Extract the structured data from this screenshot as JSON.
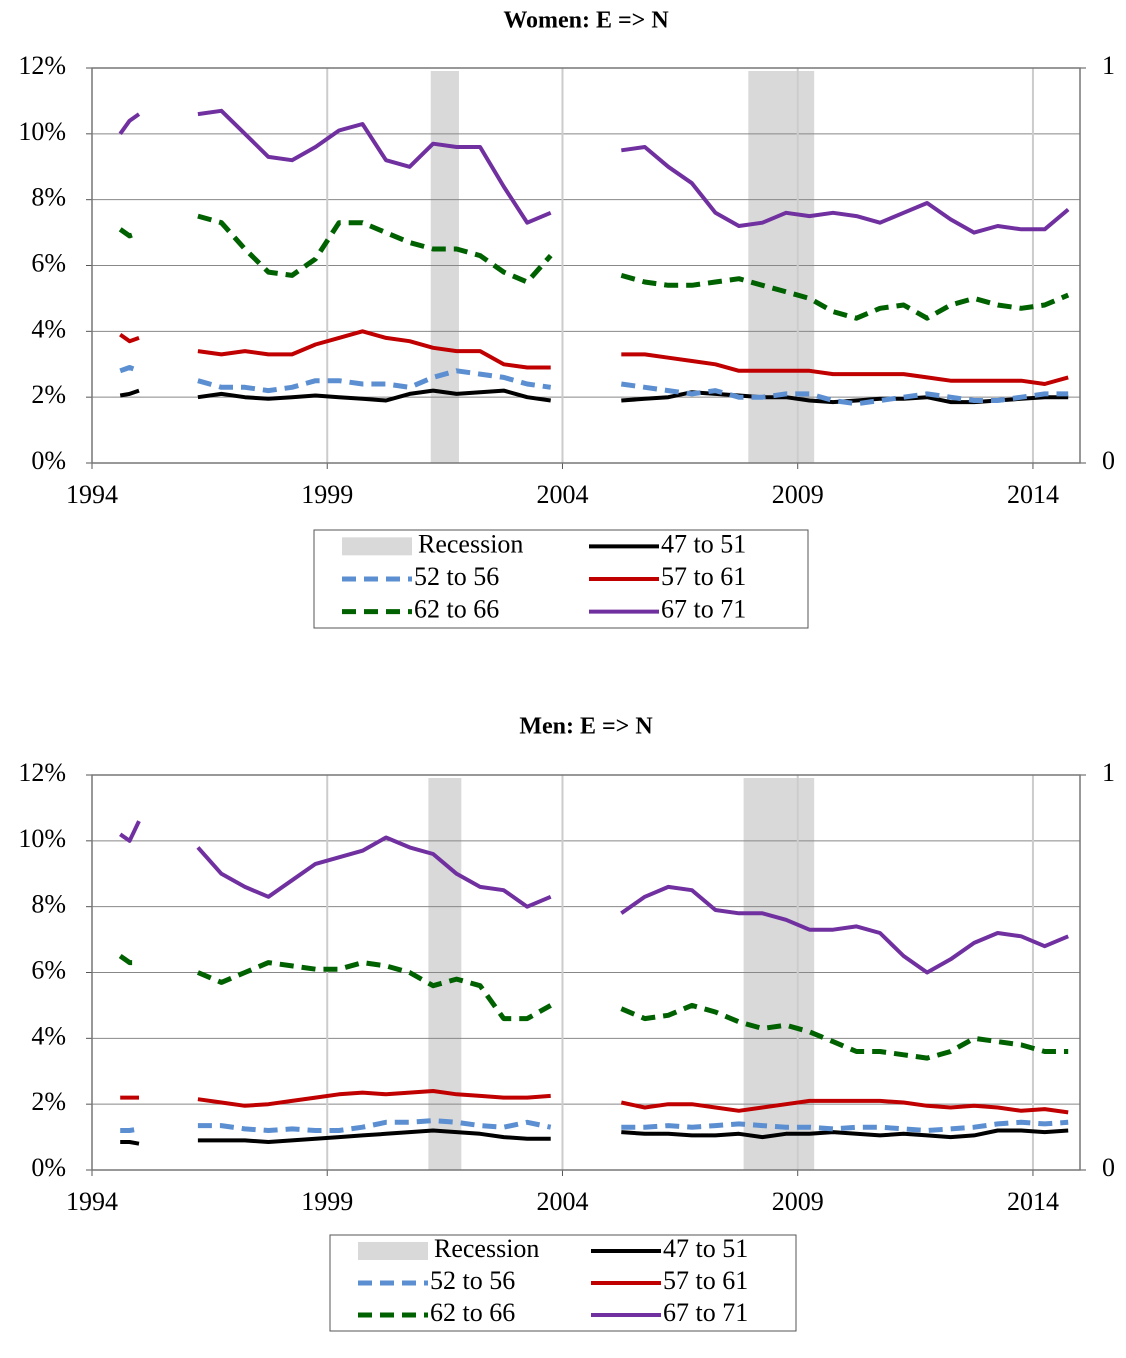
{
  "chart_data": [
    {
      "type": "line",
      "title": "Women:  E => N",
      "x": [
        1994.6,
        1994.8,
        1995.0,
        1995.6,
        1996.25,
        1996.75,
        1997.25,
        1997.75,
        1998.25,
        1998.75,
        1999.25,
        1999.75,
        2000.25,
        2000.75,
        2001.25,
        2001.75,
        2002.25,
        2002.75,
        2003.25,
        2003.75,
        2004.5,
        2005.25,
        2005.75,
        2006.25,
        2006.75,
        2007.25,
        2007.75,
        2008.25,
        2008.75,
        2009.25,
        2009.75,
        2010.25,
        2010.75,
        2011.25,
        2011.75,
        2012.25,
        2012.75,
        2013.25,
        2013.75,
        2014.25,
        2014.75
      ],
      "xlim": [
        1994,
        2015
      ],
      "xticks": [
        1994,
        1999,
        2004,
        2009,
        2014
      ],
      "ylim": [
        0,
        12
      ],
      "yticks": [
        {
          "value": 0,
          "label": "0%"
        },
        {
          "value": 2,
          "label": "2%"
        },
        {
          "value": 4,
          "label": "4%"
        },
        {
          "value": 6,
          "label": "6%"
        },
        {
          "value": 8,
          "label": "8%"
        },
        {
          "value": 10,
          "label": "10%"
        },
        {
          "value": 12,
          "label": "12%"
        }
      ],
      "y2lim": [
        0,
        1
      ],
      "y2ticks": [
        0,
        1
      ],
      "grid": true,
      "recessions": {
        "name": "Recession",
        "color": "#d9d9d9",
        "ranges": [
          [
            2001.2,
            2001.8
          ],
          [
            2007.95,
            2009.35
          ]
        ]
      },
      "series": [
        {
          "name": "47 to 51",
          "color": "#000000",
          "style": "solid",
          "values": [
            2.05,
            2.1,
            2.2,
            null,
            2.0,
            2.1,
            2.0,
            1.95,
            2.0,
            2.05,
            2.0,
            1.95,
            1.9,
            2.1,
            2.2,
            2.1,
            2.15,
            2.2,
            2.0,
            1.9,
            null,
            1.9,
            1.95,
            2.0,
            2.15,
            2.1,
            2.05,
            2.0,
            2.0,
            1.9,
            1.85,
            1.9,
            1.95,
            1.95,
            2.0,
            1.85,
            1.85,
            1.9,
            1.95,
            2.0,
            2.0
          ]
        },
        {
          "name": "52 to 56",
          "color": "#5b8fd1",
          "style": "dashed",
          "values": [
            2.8,
            2.9,
            2.8,
            null,
            2.5,
            2.3,
            2.3,
            2.2,
            2.3,
            2.5,
            2.5,
            2.4,
            2.4,
            2.3,
            2.6,
            2.8,
            2.7,
            2.6,
            2.4,
            2.3,
            null,
            2.4,
            2.3,
            2.2,
            2.1,
            2.2,
            2.0,
            2.0,
            2.1,
            2.1,
            1.9,
            1.8,
            1.9,
            2.0,
            2.1,
            2.0,
            1.9,
            1.9,
            2.0,
            2.1,
            2.1
          ]
        },
        {
          "name": "57 to 61",
          "color": "#c00000",
          "style": "solid",
          "values": [
            3.9,
            3.7,
            3.8,
            null,
            3.4,
            3.3,
            3.4,
            3.3,
            3.3,
            3.6,
            3.8,
            4.0,
            3.8,
            3.7,
            3.5,
            3.4,
            3.4,
            3.0,
            2.9,
            2.9,
            null,
            3.3,
            3.3,
            3.2,
            3.1,
            3.0,
            2.8,
            2.8,
            2.8,
            2.8,
            2.7,
            2.7,
            2.7,
            2.7,
            2.6,
            2.5,
            2.5,
            2.5,
            2.5,
            2.4,
            2.6
          ]
        },
        {
          "name": "62 to 66",
          "color": "#006100",
          "style": "dashed",
          "values": [
            7.1,
            6.9,
            7.0,
            null,
            7.5,
            7.3,
            6.5,
            5.8,
            5.7,
            6.2,
            7.3,
            7.3,
            7.0,
            6.7,
            6.5,
            6.5,
            6.3,
            5.8,
            5.5,
            6.3,
            null,
            5.7,
            5.5,
            5.4,
            5.4,
            5.5,
            5.6,
            5.4,
            5.2,
            5.0,
            4.6,
            4.4,
            4.7,
            4.8,
            4.4,
            4.8,
            5.0,
            4.8,
            4.7,
            4.8,
            5.1
          ]
        },
        {
          "name": "67 to 71",
          "color": "#7030a0",
          "style": "solid",
          "values": [
            10.0,
            10.4,
            10.6,
            null,
            10.6,
            10.7,
            10.0,
            9.3,
            9.2,
            9.6,
            10.1,
            10.3,
            9.2,
            9.0,
            9.7,
            9.6,
            9.6,
            8.4,
            7.3,
            7.6,
            null,
            9.5,
            9.6,
            9.0,
            8.5,
            7.6,
            7.2,
            7.3,
            7.6,
            7.5,
            7.6,
            7.5,
            7.3,
            7.6,
            7.9,
            7.4,
            7.0,
            7.2,
            7.1,
            7.1,
            7.7
          ]
        }
      ]
    },
    {
      "type": "line",
      "title": "Men:  E => N",
      "x": [
        1994.6,
        1994.8,
        1995.0,
        1995.6,
        1996.25,
        1996.75,
        1997.25,
        1997.75,
        1998.25,
        1998.75,
        1999.25,
        1999.75,
        2000.25,
        2000.75,
        2001.25,
        2001.75,
        2002.25,
        2002.75,
        2003.25,
        2003.75,
        2004.5,
        2005.25,
        2005.75,
        2006.25,
        2006.75,
        2007.25,
        2007.75,
        2008.25,
        2008.75,
        2009.25,
        2009.75,
        2010.25,
        2010.75,
        2011.25,
        2011.75,
        2012.25,
        2012.75,
        2013.25,
        2013.75,
        2014.25,
        2014.75
      ],
      "xlim": [
        1994,
        2015
      ],
      "xticks": [
        1994,
        1999,
        2004,
        2009,
        2014
      ],
      "ylim": [
        0,
        12
      ],
      "yticks": [
        {
          "value": 0,
          "label": "0%"
        },
        {
          "value": 2,
          "label": "2%"
        },
        {
          "value": 4,
          "label": "4%"
        },
        {
          "value": 6,
          "label": "6%"
        },
        {
          "value": 8,
          "label": "8%"
        },
        {
          "value": 10,
          "label": "10%"
        },
        {
          "value": 12,
          "label": "12%"
        }
      ],
      "y2lim": [
        0,
        1
      ],
      "y2ticks": [
        0,
        1
      ],
      "grid": true,
      "recessions": {
        "name": "Recession",
        "color": "#d9d9d9",
        "ranges": [
          [
            2001.15,
            2001.85
          ],
          [
            2007.85,
            2009.35
          ]
        ]
      },
      "series": [
        {
          "name": "47 to 51",
          "color": "#000000",
          "style": "solid",
          "values": [
            0.85,
            0.85,
            0.8,
            null,
            0.9,
            0.9,
            0.9,
            0.85,
            0.9,
            0.95,
            1.0,
            1.05,
            1.1,
            1.15,
            1.2,
            1.15,
            1.1,
            1.0,
            0.95,
            0.95,
            null,
            1.15,
            1.1,
            1.1,
            1.05,
            1.05,
            1.1,
            1.0,
            1.1,
            1.1,
            1.15,
            1.1,
            1.05,
            1.1,
            1.05,
            1.0,
            1.05,
            1.2,
            1.2,
            1.15,
            1.2
          ]
        },
        {
          "name": "52 to 56",
          "color": "#5b8fd1",
          "style": "dashed",
          "values": [
            1.2,
            1.2,
            1.25,
            null,
            1.35,
            1.35,
            1.25,
            1.2,
            1.25,
            1.2,
            1.2,
            1.3,
            1.45,
            1.45,
            1.5,
            1.45,
            1.35,
            1.3,
            1.45,
            1.3,
            null,
            1.3,
            1.3,
            1.35,
            1.3,
            1.35,
            1.4,
            1.35,
            1.3,
            1.3,
            1.25,
            1.3,
            1.3,
            1.25,
            1.2,
            1.25,
            1.3,
            1.4,
            1.45,
            1.4,
            1.45
          ]
        },
        {
          "name": "57 to 61",
          "color": "#c00000",
          "style": "solid",
          "values": [
            2.2,
            2.2,
            2.2,
            null,
            2.15,
            2.05,
            1.95,
            2.0,
            2.1,
            2.2,
            2.3,
            2.35,
            2.3,
            2.35,
            2.4,
            2.3,
            2.25,
            2.2,
            2.2,
            2.25,
            null,
            2.05,
            1.9,
            2.0,
            2.0,
            1.9,
            1.8,
            1.9,
            2.0,
            2.1,
            2.1,
            2.1,
            2.1,
            2.05,
            1.95,
            1.9,
            1.95,
            1.9,
            1.8,
            1.85,
            1.75
          ]
        },
        {
          "name": "62 to 66",
          "color": "#006100",
          "style": "dashed",
          "values": [
            6.5,
            6.3,
            6.3,
            null,
            6.0,
            5.7,
            6.0,
            6.3,
            6.2,
            6.1,
            6.1,
            6.3,
            6.2,
            6.0,
            5.6,
            5.8,
            5.6,
            4.6,
            4.6,
            5.0,
            null,
            4.9,
            4.6,
            4.7,
            5.0,
            4.8,
            4.5,
            4.3,
            4.4,
            4.2,
            3.9,
            3.6,
            3.6,
            3.5,
            3.4,
            3.6,
            4.0,
            3.9,
            3.8,
            3.6,
            3.6
          ]
        },
        {
          "name": "67 to 71",
          "color": "#7030a0",
          "style": "solid",
          "values": [
            10.2,
            10.0,
            10.6,
            null,
            9.8,
            9.0,
            8.6,
            8.3,
            8.8,
            9.3,
            9.5,
            9.7,
            10.1,
            9.8,
            9.6,
            9.0,
            8.6,
            8.5,
            8.0,
            8.3,
            null,
            7.8,
            8.3,
            8.6,
            8.5,
            7.9,
            7.8,
            7.8,
            7.6,
            7.3,
            7.3,
            7.4,
            7.2,
            6.5,
            6.0,
            6.4,
            6.9,
            7.2,
            7.1,
            6.8,
            7.1
          ]
        }
      ]
    }
  ]
}
